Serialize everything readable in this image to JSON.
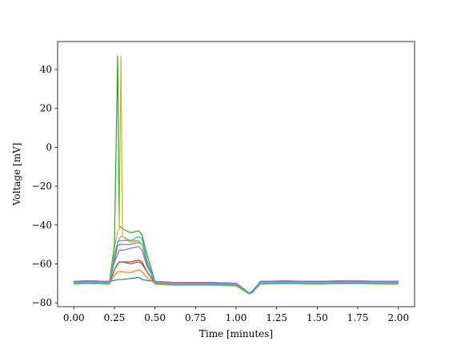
{
  "chart_data": {
    "type": "line",
    "xlabel": "Time [minutes]",
    "ylabel": "Voltage [mV]",
    "x": [
      0,
      0.1,
      0.2,
      0.22,
      0.25,
      0.27,
      0.28,
      0.29,
      0.3,
      0.35,
      0.4,
      0.42,
      0.45,
      0.5,
      0.6,
      0.8,
      0.95,
      1.0,
      1.05,
      1.08,
      1.1,
      1.15,
      1.3,
      1.5,
      1.7,
      1.9,
      2.0
    ],
    "xlim": [
      -0.1,
      2.1
    ],
    "xticks": [
      {
        "value": 0,
        "label": "0.00"
      },
      {
        "value": 0.25,
        "label": "0.25"
      },
      {
        "value": 0.5,
        "label": "0.50"
      },
      {
        "value": 0.75,
        "label": "0.75"
      },
      {
        "value": 1,
        "label": "1.00"
      },
      {
        "value": 1.25,
        "label": "1.25"
      },
      {
        "value": 1.5,
        "label": "1.50"
      },
      {
        "value": 1.75,
        "label": "1.75"
      },
      {
        "value": 2,
        "label": "2.00"
      }
    ],
    "ylim": [
      -82,
      54.4
    ],
    "yticks": [
      {
        "value": -80,
        "label": "−80"
      },
      {
        "value": -60,
        "label": "−60"
      },
      {
        "value": -40,
        "label": "−40"
      },
      {
        "value": -20,
        "label": "−20"
      },
      0,
      20,
      40
    ],
    "series": [
      {
        "color": "#1f77b4",
        "values": [
          -69,
          -68.7,
          -69,
          -69,
          -68.5,
          -68,
          -68,
          -68,
          -68,
          -67.5,
          -67,
          -68,
          -68.5,
          -69,
          -69.5,
          -69.5,
          -69.8,
          -70,
          -73,
          -75,
          -74,
          -69,
          -68.8,
          -69,
          -68.7,
          -69,
          -69
        ]
      },
      {
        "color": "#ff7f0e",
        "values": [
          -70,
          -69.7,
          -70,
          -70,
          -66,
          -64,
          -64,
          -64,
          -64,
          -64.5,
          -63,
          -64,
          -67,
          -70,
          -70.5,
          -70.5,
          -70.8,
          -71,
          -73.5,
          -75,
          -74.5,
          -70,
          -69.8,
          -70,
          -69.7,
          -70,
          -70
        ]
      },
      {
        "color": "#2ca02c",
        "values": [
          -69,
          -68.7,
          -69,
          -69,
          -50,
          47,
          -41,
          -41,
          -42,
          -44,
          -43,
          -45,
          -55,
          -69,
          -69.5,
          -69.5,
          -69.8,
          -70,
          -73,
          -75,
          -74,
          -69,
          -68.8,
          -69,
          -68.7,
          -69,
          -69
        ]
      },
      {
        "color": "#d62728",
        "values": [
          -69.5,
          -69.2,
          -69.5,
          -69.5,
          -63,
          -60,
          -59,
          -59,
          -59,
          -59,
          -58,
          -59,
          -64,
          -69.5,
          -70,
          -70,
          -70.3,
          -70.5,
          -73.5,
          -75,
          -74.5,
          -69.5,
          -69.3,
          -69.5,
          -69.2,
          -69.5,
          -69.5
        ]
      },
      {
        "color": "#9467bd",
        "values": [
          -69,
          -68.7,
          -69,
          -69,
          -59,
          -55,
          -53,
          -53,
          -53,
          -52,
          -51,
          -53,
          -61,
          -69,
          -69.5,
          -69.5,
          -69.8,
          -70,
          -73,
          -75,
          -74,
          -69,
          -68.8,
          -69,
          -68.7,
          -69,
          -69
        ]
      },
      {
        "color": "#8c564b",
        "values": [
          -70,
          -69.7,
          -70,
          -70,
          -63,
          -60,
          -59,
          -59,
          -59,
          -60,
          -59,
          -60,
          -64,
          -70,
          -70.5,
          -70.5,
          -70.8,
          -71,
          -73.5,
          -75,
          -74.5,
          -70,
          -69.8,
          -70,
          -69.7,
          -70,
          -70
        ]
      },
      {
        "color": "#e377c2",
        "values": [
          -69.5,
          -69.2,
          -69.5,
          -69.5,
          -56,
          -49,
          -47,
          -46,
          -46,
          -48,
          -48,
          -50,
          -58,
          -69.5,
          -70,
          -70,
          -70.3,
          -70.5,
          -73.5,
          -75,
          -74.5,
          -69.5,
          -69.3,
          -69.5,
          -69.2,
          -69.5,
          -69.5
        ]
      },
      {
        "color": "#7f7f7f",
        "values": [
          -70,
          -69.7,
          -70,
          -70,
          -58,
          -51,
          -50,
          -50,
          -50,
          -50,
          -49,
          -50,
          -60,
          -70,
          -70.5,
          -70.5,
          -70.8,
          -71,
          -73.5,
          -75,
          -74.5,
          -70,
          -69.8,
          -70,
          -69.7,
          -70,
          -70
        ]
      },
      {
        "color": "#bcbd22",
        "values": [
          -70.5,
          -70.2,
          -70.5,
          -70.5,
          -52,
          -43,
          -42,
          47,
          -46,
          -49,
          -48,
          -50,
          -58,
          -70.5,
          -71,
          -71,
          -71.3,
          -71.5,
          -74,
          -75.5,
          -75,
          -70.5,
          -70.3,
          -70.5,
          -70.2,
          -70.5,
          -70.5
        ]
      },
      {
        "color": "#17becf",
        "values": [
          -70,
          -69.7,
          -70,
          -70,
          -55,
          -49,
          -48,
          -48,
          -48,
          -48,
          -46,
          -47,
          -58,
          -70,
          -70.5,
          -70.5,
          -70.8,
          -71,
          -73.5,
          -75.5,
          -74.5,
          -70,
          -69.8,
          -70,
          -69.7,
          -70,
          -70
        ]
      }
    ]
  }
}
